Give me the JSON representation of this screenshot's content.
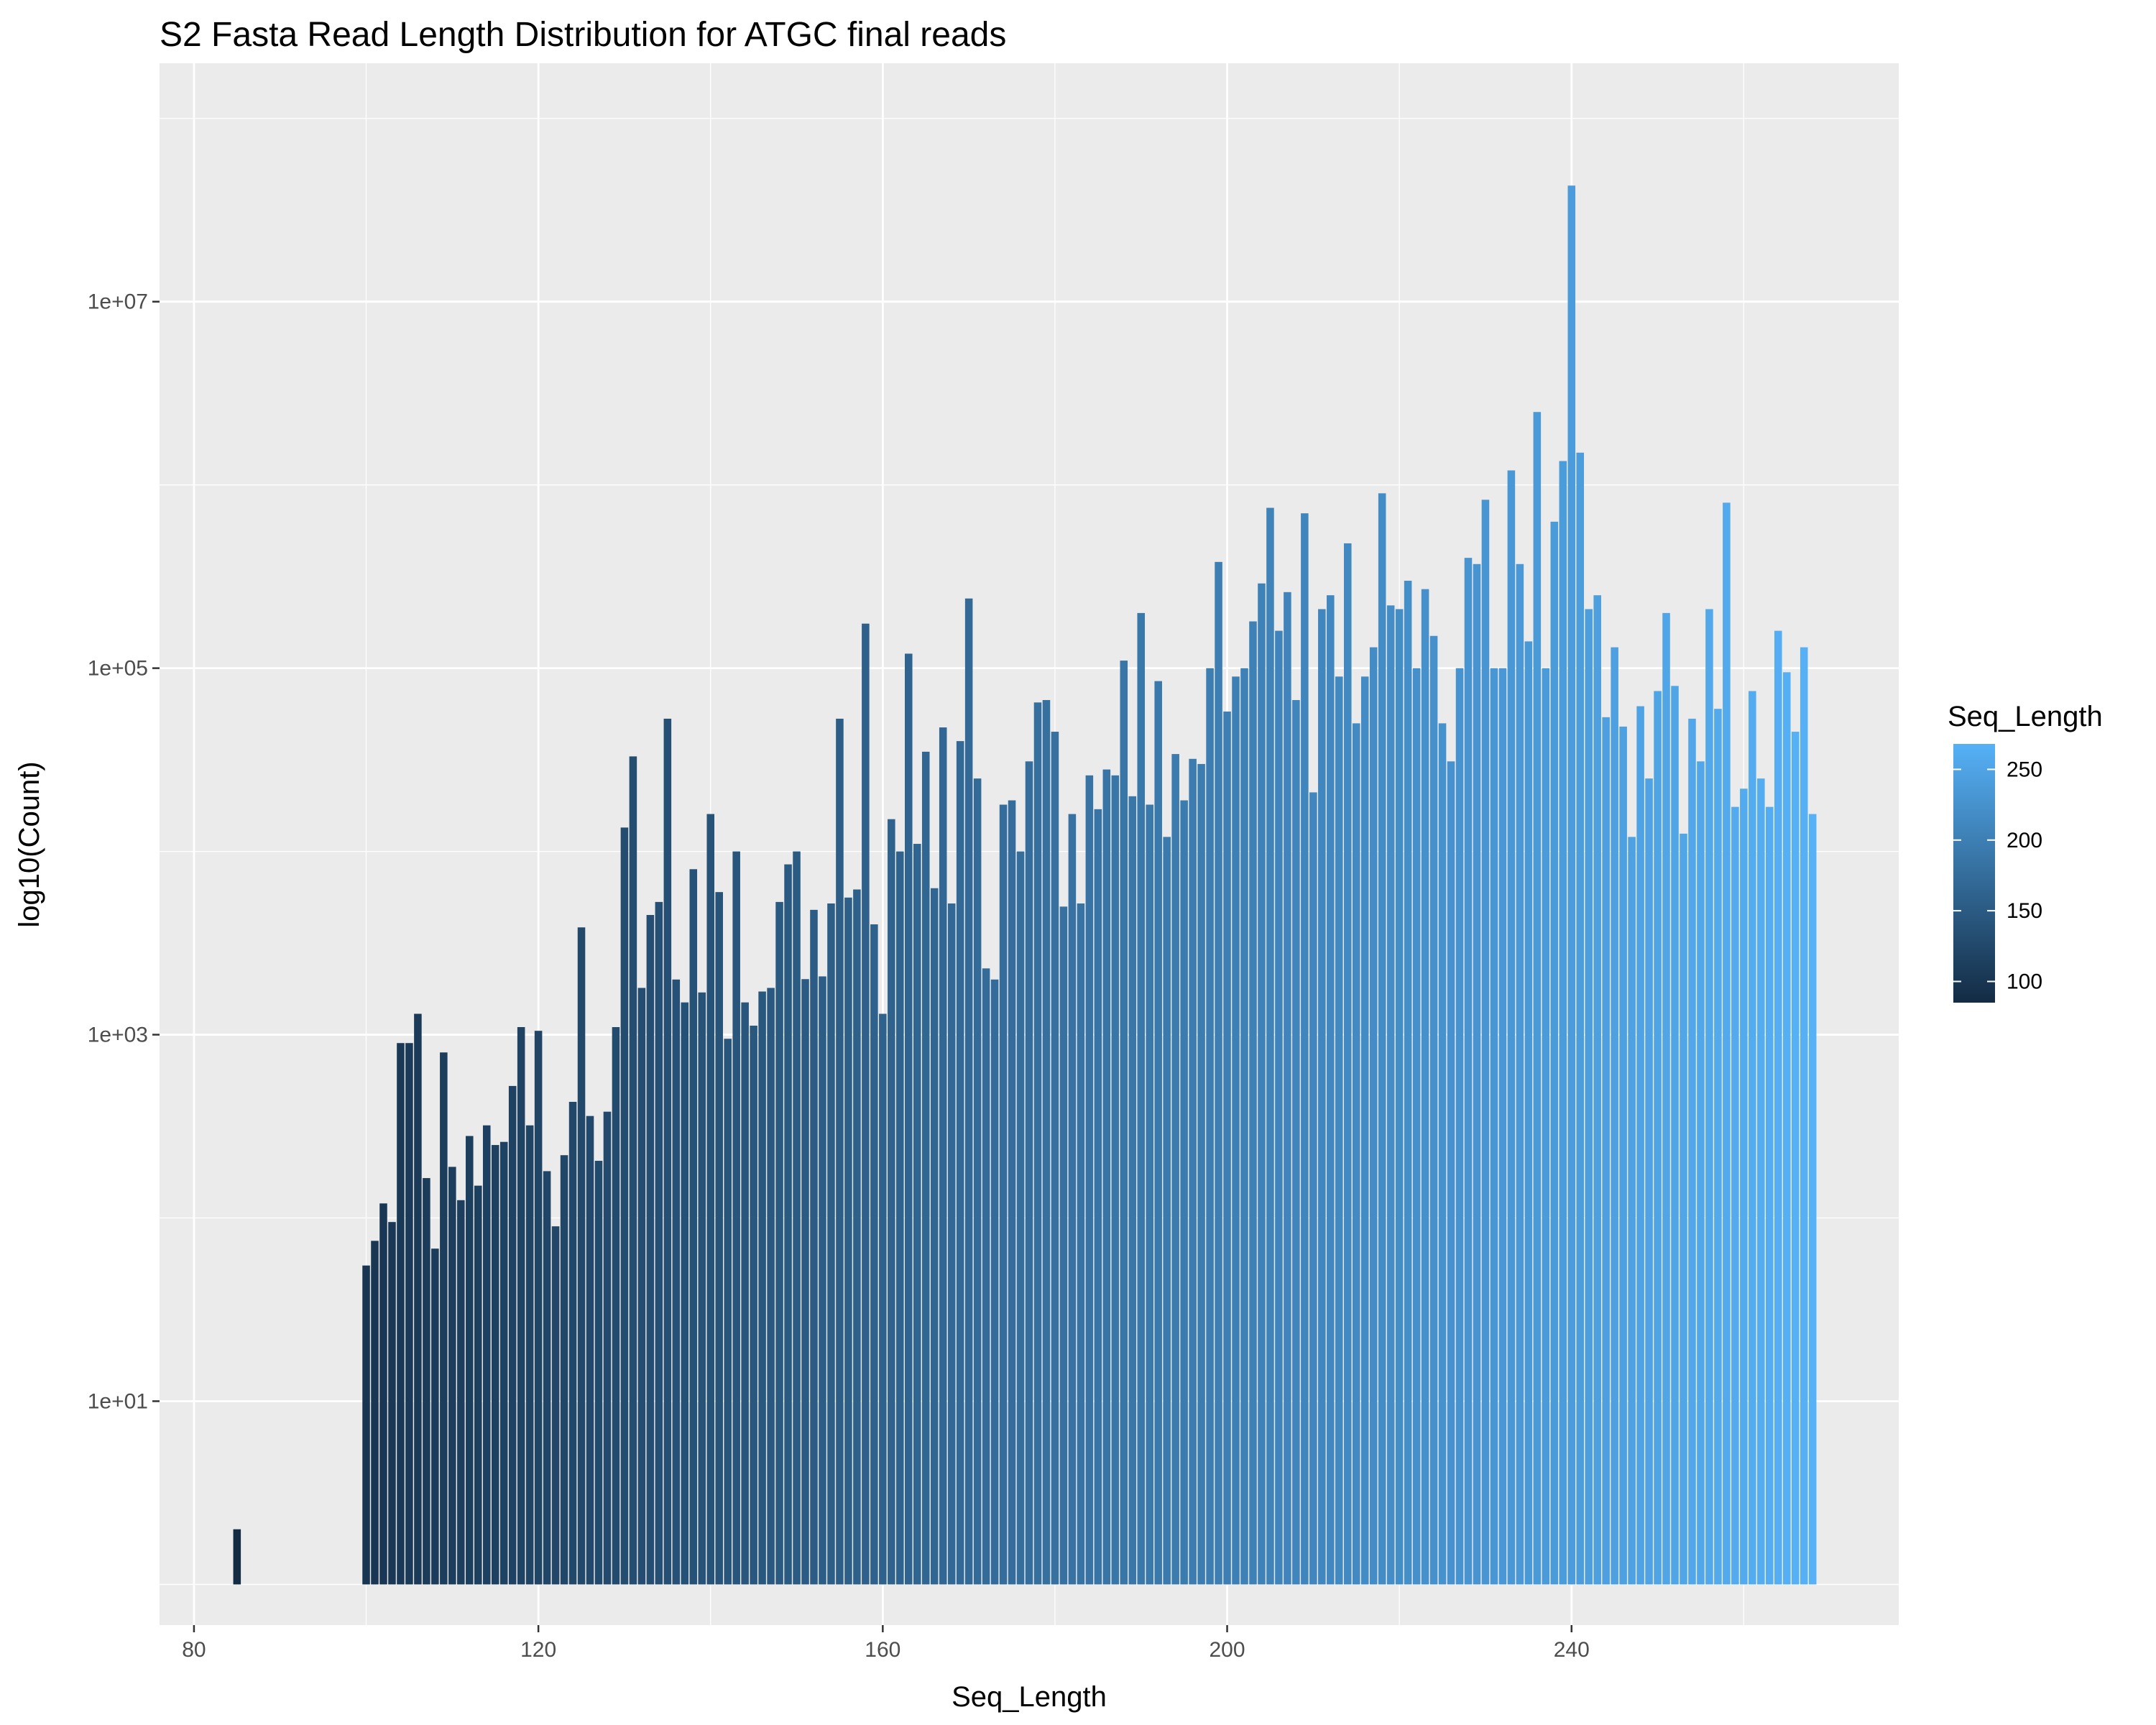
{
  "chart_data": {
    "type": "bar",
    "title": "S2 Fasta Read Length Distribution for ATGC final reads",
    "xlabel": "Seq_Length",
    "ylabel": "log10(Count)",
    "x_axis": {
      "min": 76,
      "max": 278,
      "ticks": [
        80,
        120,
        160,
        200,
        240
      ],
      "tick_labels": [
        "80",
        "120",
        "160",
        "200",
        "240"
      ]
    },
    "y_axis": {
      "scale": "log10",
      "min": 0.6,
      "max": 200000000,
      "ticks": [
        10,
        1000,
        100000,
        10000000
      ],
      "tick_labels": [
        "1e+01",
        "1e+03",
        "1e+05",
        "1e+07"
      ],
      "minor_ticks": [
        1,
        100,
        10000,
        1000000,
        100000000
      ]
    },
    "baseline": 1,
    "grid": true,
    "background": "#ebebeb",
    "legend": {
      "title": "Seq_Length",
      "position": "right",
      "type": "colorbar",
      "range": [
        85,
        268
      ],
      "breaks": [
        100,
        150,
        200,
        250
      ],
      "break_labels": [
        "100",
        "150",
        "200",
        "250"
      ],
      "low_color": "#132b43",
      "high_color": "#56b1f7"
    },
    "x": [
      85,
      100,
      101,
      102,
      103,
      104,
      105,
      106,
      107,
      108,
      109,
      110,
      111,
      112,
      113,
      114,
      115,
      116,
      117,
      118,
      119,
      120,
      121,
      122,
      123,
      124,
      125,
      126,
      127,
      128,
      129,
      130,
      131,
      132,
      133,
      134,
      135,
      136,
      137,
      138,
      139,
      140,
      141,
      142,
      143,
      144,
      145,
      146,
      147,
      148,
      149,
      150,
      151,
      152,
      153,
      154,
      155,
      156,
      157,
      158,
      159,
      160,
      161,
      162,
      163,
      164,
      165,
      166,
      167,
      168,
      169,
      170,
      171,
      172,
      173,
      174,
      175,
      176,
      177,
      178,
      179,
      180,
      181,
      182,
      183,
      184,
      185,
      186,
      187,
      188,
      189,
      190,
      191,
      192,
      193,
      194,
      195,
      196,
      197,
      198,
      199,
      200,
      201,
      202,
      203,
      204,
      205,
      206,
      207,
      208,
      209,
      210,
      211,
      212,
      213,
      214,
      215,
      216,
      217,
      218,
      219,
      220,
      221,
      222,
      223,
      224,
      225,
      226,
      227,
      228,
      229,
      230,
      231,
      232,
      233,
      234,
      235,
      236,
      237,
      238,
      239,
      240,
      241,
      242,
      243,
      244,
      245,
      246,
      247,
      248,
      249,
      250,
      251,
      252,
      253,
      254,
      255,
      256,
      257,
      258,
      259,
      260,
      261,
      262,
      263,
      264,
      265,
      266,
      267,
      268
    ],
    "values": [
      2,
      55,
      75,
      120,
      95,
      900,
      900,
      1300,
      165,
      68,
      800,
      190,
      125,
      280,
      150,
      320,
      250,
      260,
      525,
      1100,
      320,
      1050,
      180,
      90,
      220,
      430,
      3850,
      360,
      205,
      380,
      1100,
      13500,
      33000,
      1800,
      4500,
      5300,
      53000,
      2000,
      1500,
      8000,
      1700,
      16000,
      6000,
      950,
      10000,
      1500,
      1120,
      1720,
      1800,
      5300,
      8500,
      10000,
      2010,
      4800,
      2080,
      5200,
      53000,
      5600,
      6200,
      175000,
      4000,
      1300,
      15000,
      10000,
      120000,
      11000,
      35000,
      6300,
      47500,
      5200,
      40000,
      240000,
      25000,
      2300,
      2000,
      18000,
      19000,
      10000,
      31000,
      65000,
      67000,
      45000,
      5000,
      16000,
      5200,
      26000,
      17000,
      28000,
      26000,
      110000,
      20000,
      200000,
      18000,
      85000,
      12000,
      34000,
      19000,
      32000,
      30000,
      100000,
      380000,
      58000,
      90000,
      100000,
      180000,
      290000,
      750000,
      160000,
      260000,
      67000,
      700000,
      21000,
      210000,
      250000,
      90000,
      480000,
      50000,
      90000,
      130000,
      900000,
      220000,
      210000,
      300000,
      100000,
      270000,
      150000,
      50000,
      31000,
      100000,
      400000,
      370000,
      830000,
      100000,
      100000,
      1200000,
      370000,
      140000,
      2500000,
      100000,
      630000,
      1350000,
      43000000,
      1500000,
      210000,
      250000,
      54000,
      130000,
      48000,
      12000,
      62000,
      25000,
      75000,
      200000,
      80000,
      12500,
      53000,
      31000,
      210000,
      60000,
      800000,
      17500,
      22000,
      75000,
      25000,
      17500,
      160000,
      95000,
      45000,
      130000,
      16000
    ]
  }
}
